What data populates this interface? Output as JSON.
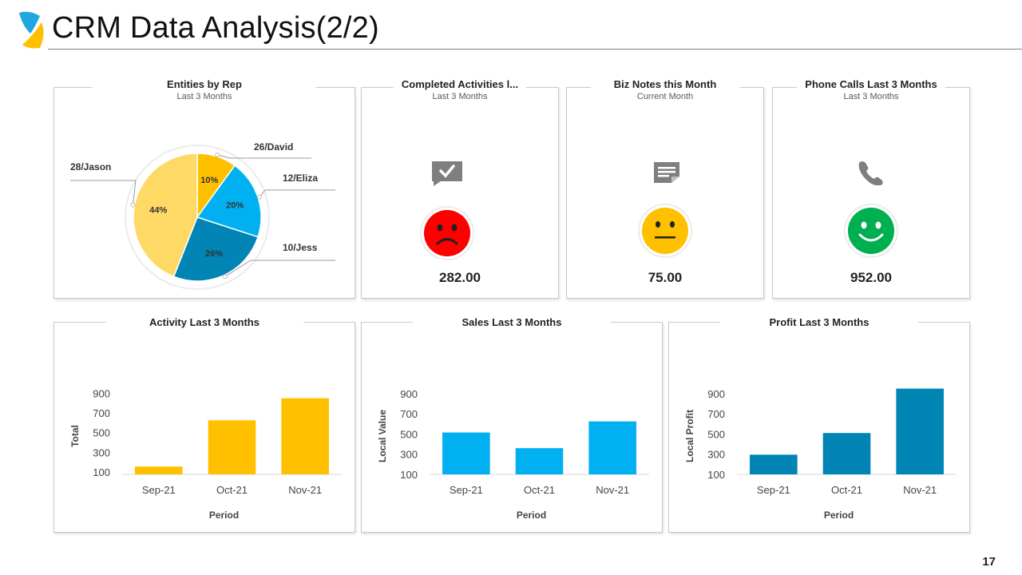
{
  "slide": {
    "title": "CRM Data Analysis(2/2)",
    "page_number": "17",
    "colors": {
      "gold": "#FFC000",
      "light_gold": "#FFD966",
      "sky": "#00B0F0",
      "blue": "#0070C0",
      "teal": "#0085B4",
      "red": "#FF0000",
      "green": "#00B050",
      "gray": "#7F7F7F"
    }
  },
  "kpis": [
    {
      "title": "Completed Activities l...",
      "subtitle": "Last 3 Months",
      "icon": "chat-check-icon",
      "mood": "sad-face-icon",
      "value": "282.00"
    },
    {
      "title": "Biz Notes this Month",
      "subtitle": "Current Month",
      "icon": "note-icon",
      "mood": "neutral-face-icon",
      "value": "75.00"
    },
    {
      "title": "Phone Calls Last 3 Months",
      "subtitle": "Last 3 Months",
      "icon": "phone-icon",
      "mood": "happy-face-icon",
      "value": "952.00"
    }
  ],
  "chart_data": [
    {
      "type": "pie",
      "title": "Entities by Rep",
      "subtitle": "Last 3 Months",
      "slices": [
        {
          "label": "26/David",
          "value": 10,
          "pct_label": "10%",
          "color": "#FFC000"
        },
        {
          "label": "12/Eliza",
          "value": 20,
          "pct_label": "20%",
          "color": "#00B0F0"
        },
        {
          "label": "10/Jess",
          "value": 26,
          "pct_label": "26%",
          "color": "#0085B4"
        },
        {
          "label": "28/Jason",
          "value": 44,
          "pct_label": "44%",
          "color": "#FFD966"
        }
      ]
    },
    {
      "type": "bar",
      "title": "Activity Last 3 Months",
      "categories": [
        "Sep-21",
        "Oct-21",
        "Nov-21"
      ],
      "values": [
        155,
        625,
        850
      ],
      "xlabel": "Period",
      "ylabel": "Total",
      "yticks": [
        100,
        300,
        500,
        700,
        900
      ],
      "ylim": [
        75,
        1050
      ],
      "color": "#FFC000"
    },
    {
      "type": "bar",
      "title": "Sales Last 3 Months",
      "categories": [
        "Sep-21",
        "Oct-21",
        "Nov-21"
      ],
      "values": [
        515,
        360,
        625
      ],
      "xlabel": "Period",
      "ylabel": "Local Value",
      "yticks": [
        100,
        300,
        500,
        700,
        900
      ],
      "ylim": [
        100,
        1050
      ],
      "color": "#00B0F0"
    },
    {
      "type": "bar",
      "title": "Profit Last 3 Months",
      "categories": [
        "Sep-21",
        "Oct-21",
        "Nov-21"
      ],
      "values": [
        295,
        510,
        950
      ],
      "xlabel": "Period",
      "ylabel": "Local Profit",
      "yticks": [
        100,
        300,
        500,
        700,
        900
      ],
      "ylim": [
        100,
        1050
      ],
      "color": "#0085B4"
    }
  ]
}
